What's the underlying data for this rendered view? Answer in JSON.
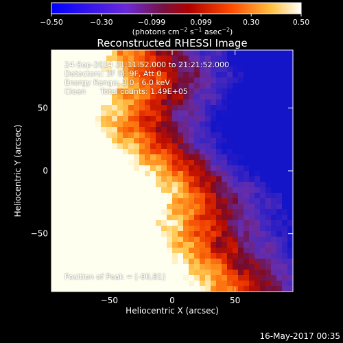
{
  "chart_data": {
    "type": "heatmap",
    "title": "Reconstructed RHESSI Image",
    "xlabel": "Heliocentric X (arcsec)",
    "ylabel": "Heliocentric Y (arcsec)",
    "xlim": [
      -96,
      96
    ],
    "ylim": [
      -96,
      96
    ],
    "x_ticks": [
      -50,
      0,
      50
    ],
    "y_ticks": [
      50,
      0,
      -50
    ],
    "x_tick_labels": [
      "−50",
      "0",
      "50"
    ],
    "y_tick_labels": [
      "50",
      "0",
      "−50"
    ],
    "colorbar": {
      "range": [
        -0.5,
        0.5
      ],
      "ticks": [
        -0.5,
        -0.3,
        -0.099,
        0.099,
        0.3,
        0.5
      ],
      "tick_labels": [
        "−0.50",
        "−0.30",
        "−0.099",
        "0.099",
        "0.30",
        "0.50"
      ],
      "unit_main": "(photons cm",
      "unit_sup1": "−2",
      "unit_mid": " s",
      "unit_sup2": "−1",
      "unit_mid2": " asec",
      "unit_sup3": "−2",
      "unit_end": ")"
    },
    "annotations": {
      "time_range": "24-Sep-2014 21:11:52.000 to 21:21:52.000",
      "detectors": "Detectors: 3F 6F 9F, Att 0",
      "energy": "Energy Range: 3.0 - 6.0 keV",
      "method": "Clean",
      "counts": "Total counts: 1.49E+05",
      "peak": "Position of Peak = [-90,81]"
    },
    "peak_position": [
      -90,
      81
    ],
    "colormap": [
      "#0000ff",
      "#3a2a9a",
      "#7a2a80",
      "#b01010",
      "#ff5000",
      "#ffb030",
      "#ffffff"
    ]
  },
  "footer": {
    "date": "16-May-2017 00:35"
  }
}
